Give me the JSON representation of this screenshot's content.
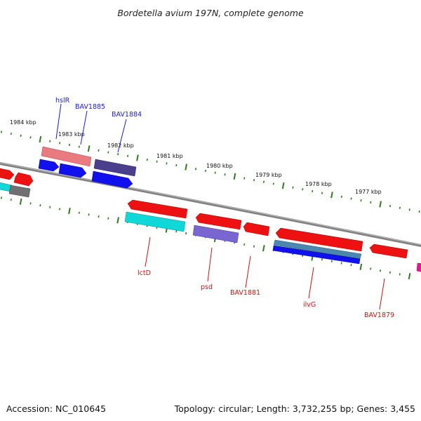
{
  "title": "Bordetella avium 197N, complete genome",
  "footer": {
    "accession": "Accession: NC_010645",
    "summary": "Topology: circular; Length: 3,732,255 bp; Genes: 3,455"
  },
  "tick_labels": [
    "1984 kbp",
    "1983 kbp",
    "1982 kbp",
    "1981 kbp",
    "1980 kbp",
    "1979 kbp",
    "1978 kbp",
    "1977 kbp"
  ],
  "gene_labels": {
    "top": [
      "hslR",
      "BAV1885",
      "BAV1884"
    ],
    "bottom": [
      "lctD",
      "psd",
      "BAV1881",
      "ilvG",
      "BAV1879"
    ]
  },
  "colors": {
    "backbone": "#808080",
    "tick_green": "#2e7d1e",
    "label_blue": "#1a1acc",
    "label_red": "#cc1111",
    "red": "#ee1111",
    "pink": "#e87a80",
    "blue": "#1111ee",
    "dark_slate": "#4a3f8c",
    "cyan": "#10d8d8",
    "lavender": "#7a66d0",
    "steel": "#4a88b0",
    "gray": "#707070",
    "magenta": "#ee1199"
  }
}
